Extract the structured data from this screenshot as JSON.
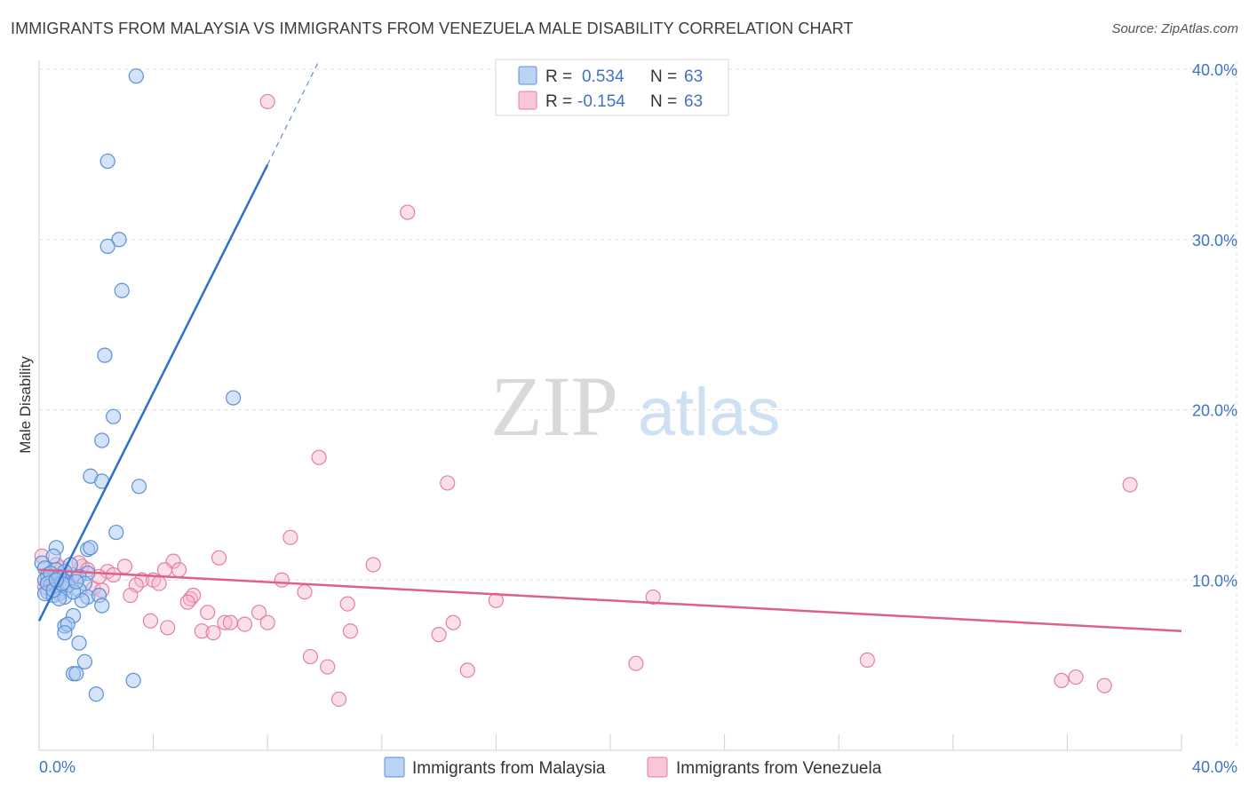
{
  "title": "IMMIGRANTS FROM MALAYSIA VS IMMIGRANTS FROM VENEZUELA MALE DISABILITY CORRELATION CHART",
  "source": "Source: ZipAtlas.com",
  "watermark": {
    "zip": "ZIP",
    "atlas": "atlas"
  },
  "legend": {
    "r_label": "R =",
    "n_label": "N =",
    "malaysia": {
      "r": "0.534",
      "n": "63"
    },
    "venezuela": {
      "r": "-0.154",
      "n": "63"
    }
  },
  "colors": {
    "malaysia_fill": "#a9c8f0",
    "malaysia_stroke": "#5b8fd6",
    "malaysia_line": "#2f6fcf",
    "venezuela_fill": "#f6b8cc",
    "venezuela_stroke": "#e57fa1",
    "venezuela_line": "#e0608c",
    "tick_text": "#3f73c4",
    "grid": "#dedede"
  },
  "chart_data": {
    "type": "scatter",
    "title": "IMMIGRANTS FROM MALAYSIA VS IMMIGRANTS FROM VENEZUELA MALE DISABILITY CORRELATION CHART",
    "xlabel": "",
    "ylabel": "Male Disability",
    "xlim": [
      0,
      40
    ],
    "ylim": [
      0,
      40
    ],
    "x_tick_labels": [
      "0.0%",
      "40.0%"
    ],
    "y_ticks": [
      10,
      20,
      30,
      40
    ],
    "y_tick_labels": [
      "10.0%",
      "20.0%",
      "30.0%",
      "40.0%"
    ],
    "series": [
      {
        "name": "Immigrants from Malaysia",
        "r": 0.534,
        "n": 63,
        "trend": {
          "x0": 0,
          "y0": 7.6,
          "x1": 8.0,
          "y1": 34.4,
          "dash_x1": 9.8,
          "dash_y1": 40.5
        },
        "points": [
          [
            3.4,
            39.6
          ],
          [
            2.4,
            34.6
          ],
          [
            2.8,
            30.0
          ],
          [
            2.4,
            29.6
          ],
          [
            2.9,
            27.0
          ],
          [
            2.3,
            23.2
          ],
          [
            6.8,
            20.7
          ],
          [
            2.6,
            19.6
          ],
          [
            2.2,
            18.2
          ],
          [
            1.8,
            16.1
          ],
          [
            2.2,
            15.8
          ],
          [
            3.5,
            15.5
          ],
          [
            2.7,
            12.8
          ],
          [
            1.7,
            11.8
          ],
          [
            1.8,
            11.9
          ],
          [
            0.6,
            11.9
          ],
          [
            0.5,
            11.4
          ],
          [
            0.1,
            11.0
          ],
          [
            1.1,
            10.9
          ],
          [
            0.2,
            10.7
          ],
          [
            0.6,
            10.6
          ],
          [
            0.9,
            10.5
          ],
          [
            1.7,
            10.4
          ],
          [
            0.3,
            10.3
          ],
          [
            0.8,
            10.1
          ],
          [
            1.4,
            10.2
          ],
          [
            0.2,
            10.0
          ],
          [
            0.5,
            9.9
          ],
          [
            0.9,
            9.9
          ],
          [
            1.6,
            9.8
          ],
          [
            0.4,
            9.7
          ],
          [
            0.6,
            9.6
          ],
          [
            0.9,
            9.5
          ],
          [
            0.3,
            9.3
          ],
          [
            1.4,
            9.4
          ],
          [
            0.7,
            9.2
          ],
          [
            0.2,
            9.2
          ],
          [
            0.5,
            9.1
          ],
          [
            0.9,
            9.0
          ],
          [
            1.7,
            9.0
          ],
          [
            2.1,
            9.1
          ],
          [
            0.7,
            8.9
          ],
          [
            1.5,
            8.8
          ],
          [
            2.2,
            8.5
          ],
          [
            1.2,
            7.9
          ],
          [
            0.9,
            7.3
          ],
          [
            1.0,
            7.4
          ],
          [
            0.9,
            6.9
          ],
          [
            1.4,
            6.3
          ],
          [
            1.6,
            5.2
          ],
          [
            1.2,
            4.5
          ],
          [
            1.3,
            4.5
          ],
          [
            3.3,
            4.1
          ],
          [
            2.0,
            3.3
          ],
          [
            0.4,
            10.4
          ],
          [
            0.7,
            10.2
          ],
          [
            1.0,
            9.7
          ],
          [
            0.3,
            9.8
          ],
          [
            1.2,
            9.3
          ],
          [
            0.5,
            9.4
          ],
          [
            0.8,
            9.8
          ],
          [
            1.3,
            9.9
          ],
          [
            0.6,
            10.0
          ]
        ]
      },
      {
        "name": "Immigrants from Venezuela",
        "r": -0.154,
        "n": 63,
        "trend": {
          "x0": 0,
          "y0": 10.6,
          "x1": 40,
          "y1": 7.0
        },
        "points": [
          [
            8.0,
            38.1
          ],
          [
            12.9,
            31.6
          ],
          [
            9.8,
            17.2
          ],
          [
            14.3,
            15.7
          ],
          [
            38.2,
            15.6
          ],
          [
            8.8,
            12.5
          ],
          [
            6.3,
            11.3
          ],
          [
            11.7,
            10.9
          ],
          [
            0.1,
            11.4
          ],
          [
            3.0,
            10.8
          ],
          [
            4.7,
            11.1
          ],
          [
            0.8,
            10.7
          ],
          [
            1.5,
            10.8
          ],
          [
            2.4,
            10.5
          ],
          [
            4.4,
            10.6
          ],
          [
            4.9,
            10.6
          ],
          [
            1.2,
            10.3
          ],
          [
            0.4,
            10.4
          ],
          [
            2.6,
            10.3
          ],
          [
            3.6,
            10.0
          ],
          [
            4.0,
            10.0
          ],
          [
            8.5,
            10.0
          ],
          [
            0.2,
            9.6
          ],
          [
            1.9,
            9.5
          ],
          [
            2.2,
            9.4
          ],
          [
            3.4,
            9.7
          ],
          [
            4.2,
            9.8
          ],
          [
            9.3,
            9.3
          ],
          [
            3.2,
            9.1
          ],
          [
            5.3,
            8.9
          ],
          [
            5.4,
            9.1
          ],
          [
            5.2,
            8.7
          ],
          [
            10.8,
            8.6
          ],
          [
            16.0,
            8.8
          ],
          [
            21.5,
            9.0
          ],
          [
            5.9,
            8.1
          ],
          [
            7.7,
            8.1
          ],
          [
            3.9,
            7.6
          ],
          [
            6.5,
            7.5
          ],
          [
            6.7,
            7.5
          ],
          [
            7.2,
            7.4
          ],
          [
            8.0,
            7.5
          ],
          [
            14.5,
            7.5
          ],
          [
            4.5,
            7.2
          ],
          [
            5.7,
            7.0
          ],
          [
            6.1,
            6.9
          ],
          [
            10.9,
            7.0
          ],
          [
            14.0,
            6.8
          ],
          [
            9.5,
            5.5
          ],
          [
            20.9,
            5.1
          ],
          [
            29.0,
            5.3
          ],
          [
            10.1,
            4.9
          ],
          [
            15.0,
            4.7
          ],
          [
            35.8,
            4.1
          ],
          [
            36.3,
            4.3
          ],
          [
            37.3,
            3.8
          ],
          [
            10.5,
            3.0
          ],
          [
            1.4,
            11.0
          ],
          [
            0.6,
            10.9
          ],
          [
            2.1,
            10.2
          ],
          [
            1.0,
            9.9
          ],
          [
            0.3,
            10.1
          ],
          [
            1.7,
            10.6
          ]
        ]
      }
    ]
  }
}
